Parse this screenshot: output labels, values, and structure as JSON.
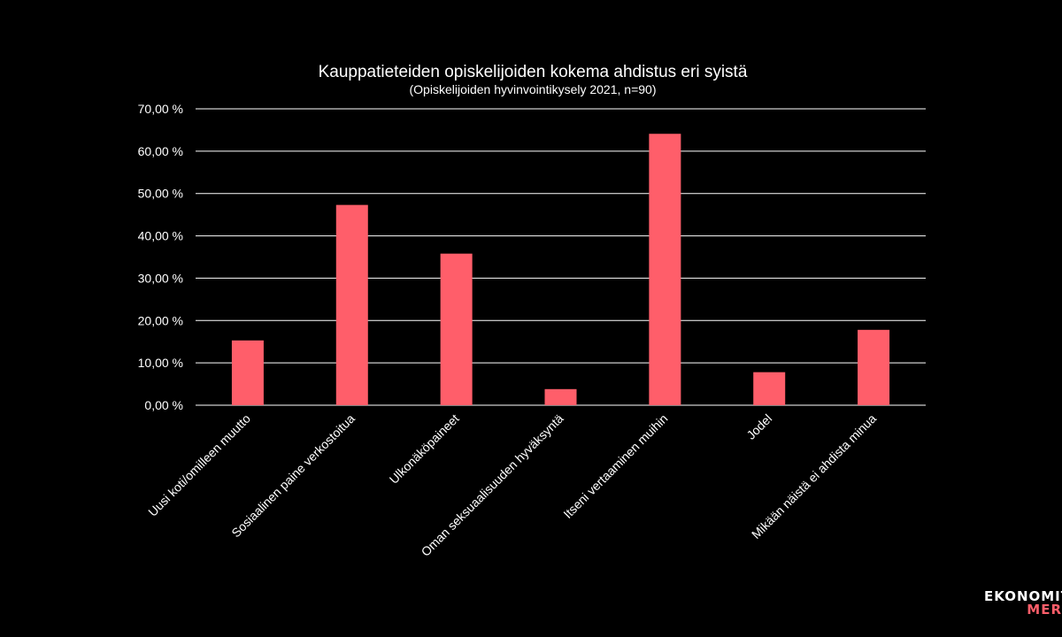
{
  "chart_data": {
    "type": "bar",
    "title": "Kauppatieteiden opiskelijoiden kokema ahdistus eri syistä",
    "subtitle": "(Opiskelijoiden hyvinvointikysely  2021, n=90)",
    "categories": [
      "Uusi koti/omilleen muutto",
      "Sosiaalinen paine verkostoitua",
      "Ulkonäköpaineet",
      "Oman seksuaalisuuden hyväksyntä",
      "Itseni vertaaminen muihin",
      "Jodel",
      "Mikään näistä ei ahdista minua"
    ],
    "values": [
      15.3,
      47.3,
      35.8,
      3.8,
      64.1,
      7.8,
      17.8
    ],
    "ylim": [
      0,
      70
    ],
    "yticks": [
      "0,00 %",
      "10,00 %",
      "20,00 %",
      "30,00 %",
      "40,00 %",
      "50,00 %",
      "60,00 %",
      "70,00 %"
    ],
    "grid": true,
    "bar_color": "#ff5e6a",
    "background": "#000000"
  },
  "logo": {
    "line1": "EKONOMIT",
    "line2": "MER",
    "accent": "#ff5e6a"
  }
}
